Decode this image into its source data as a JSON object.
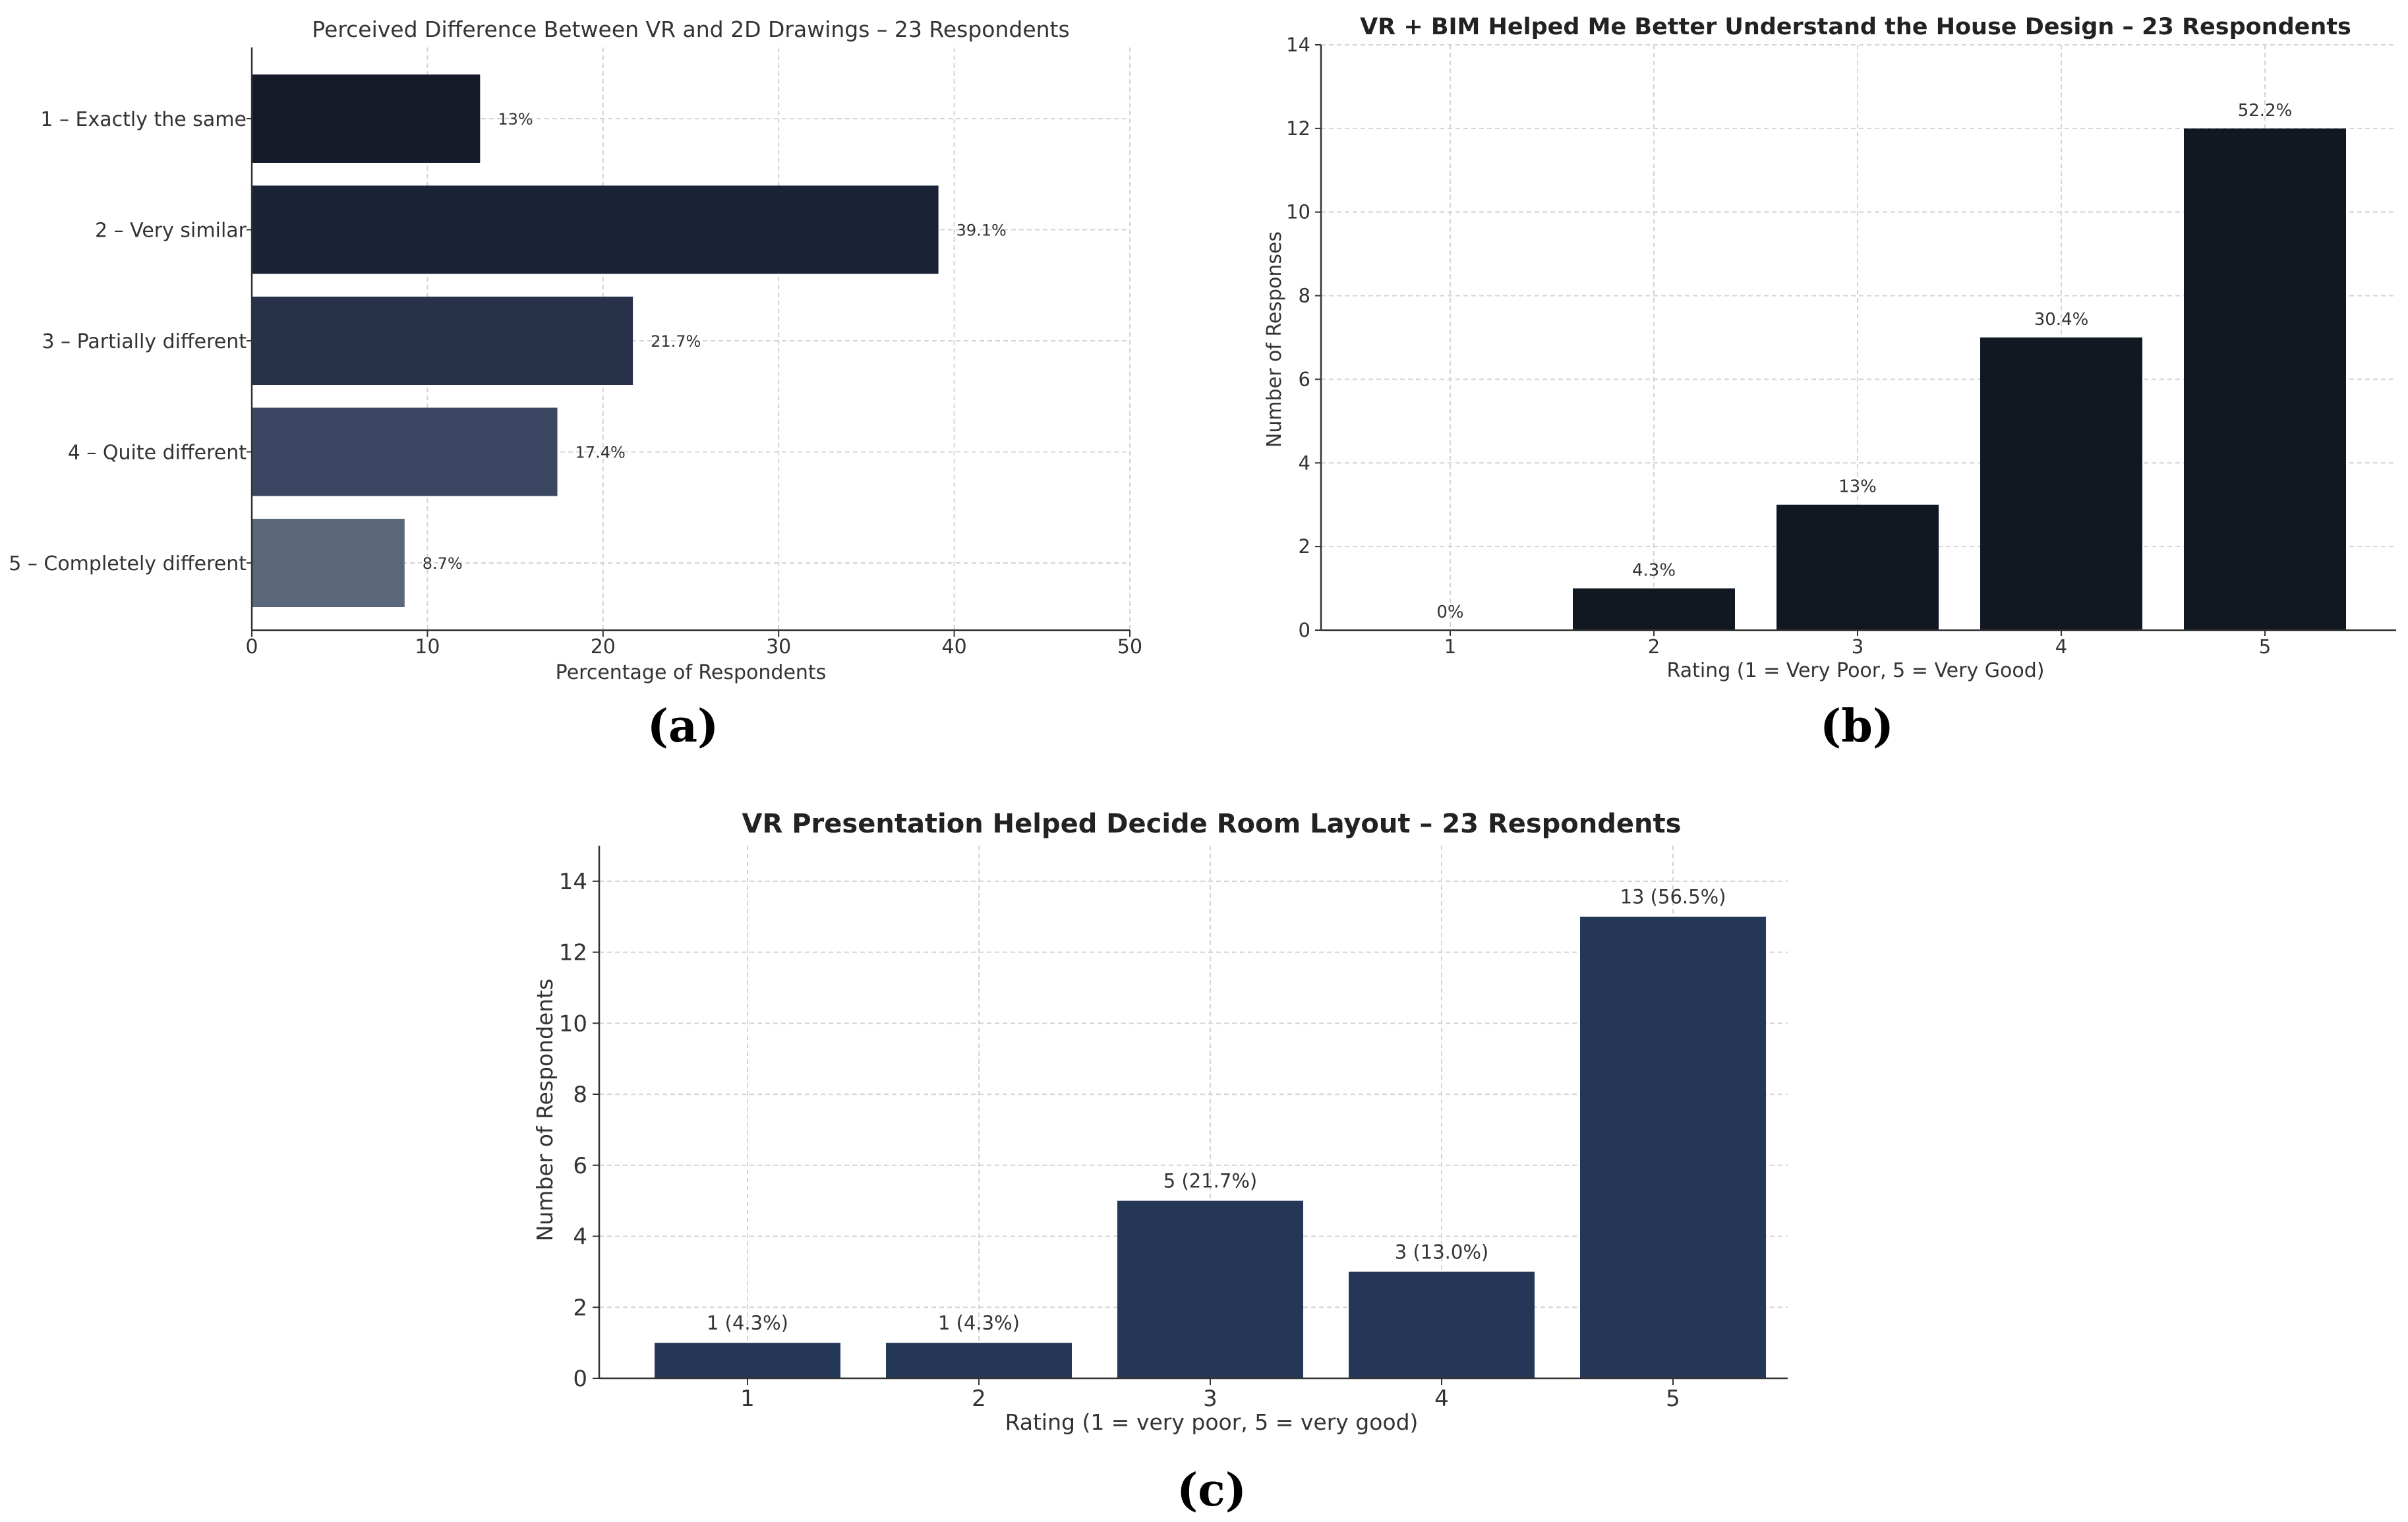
{
  "chart_data": [
    {
      "type": "bar",
      "orientation": "horizontal",
      "panel_label": "(a)",
      "title": "Perceived Difference Between VR and 2D Drawings – 23 Respondents",
      "xlabel": "Percentage of Respondents",
      "ylabel": "",
      "categories": [
        "1 – Exactly the same",
        "2 – Very similar",
        "3 – Partially different",
        "4 – Quite different",
        "5 – Completely different"
      ],
      "values": [
        13.0,
        39.1,
        21.7,
        17.4,
        8.7
      ],
      "data_labels": [
        "13%",
        "39.1%",
        "21.7%",
        "17.4%",
        "8.7%"
      ],
      "colors": [
        "#141a28",
        "#1a2236",
        "#27324a",
        "#3b4762",
        "#5a6679"
      ],
      "xlim": [
        0,
        50
      ],
      "xticks": [
        0,
        10,
        20,
        30,
        40,
        50
      ],
      "grid": true
    },
    {
      "type": "bar",
      "panel_label": "(b)",
      "title": "VR + BIM Helped Me Better Understand the House Design – 23 Respondents",
      "xlabel": "Rating (1 = Very Poor, 5 = Very Good)",
      "ylabel": "Number of Responses",
      "categories": [
        "1",
        "2",
        "3",
        "4",
        "5"
      ],
      "values": [
        0,
        1,
        3,
        7,
        12
      ],
      "data_labels": [
        "0%",
        "4.3%",
        "13%",
        "30.4%",
        "52.2%"
      ],
      "color": "#111822",
      "ylim": [
        0,
        14
      ],
      "yticks": [
        0,
        2,
        4,
        6,
        8,
        10,
        12,
        14
      ],
      "grid": true
    },
    {
      "type": "bar",
      "panel_label": "(c)",
      "title": "VR Presentation Helped Decide Room Layout – 23 Respondents",
      "xlabel": "Rating (1 = very poor, 5 = very good)",
      "ylabel": "Number of Respondents",
      "categories": [
        "1",
        "2",
        "3",
        "4",
        "5"
      ],
      "values": [
        1,
        1,
        5,
        3,
        13
      ],
      "data_labels": [
        "1 (4.3%)",
        "1 (4.3%)",
        "5 (21.7%)",
        "3 (13.0%)",
        "13 (56.5%)"
      ],
      "color": "#243757",
      "ylim": [
        0,
        15
      ],
      "yticks": [
        0,
        2,
        4,
        6,
        8,
        10,
        12,
        14
      ],
      "grid": true
    }
  ]
}
